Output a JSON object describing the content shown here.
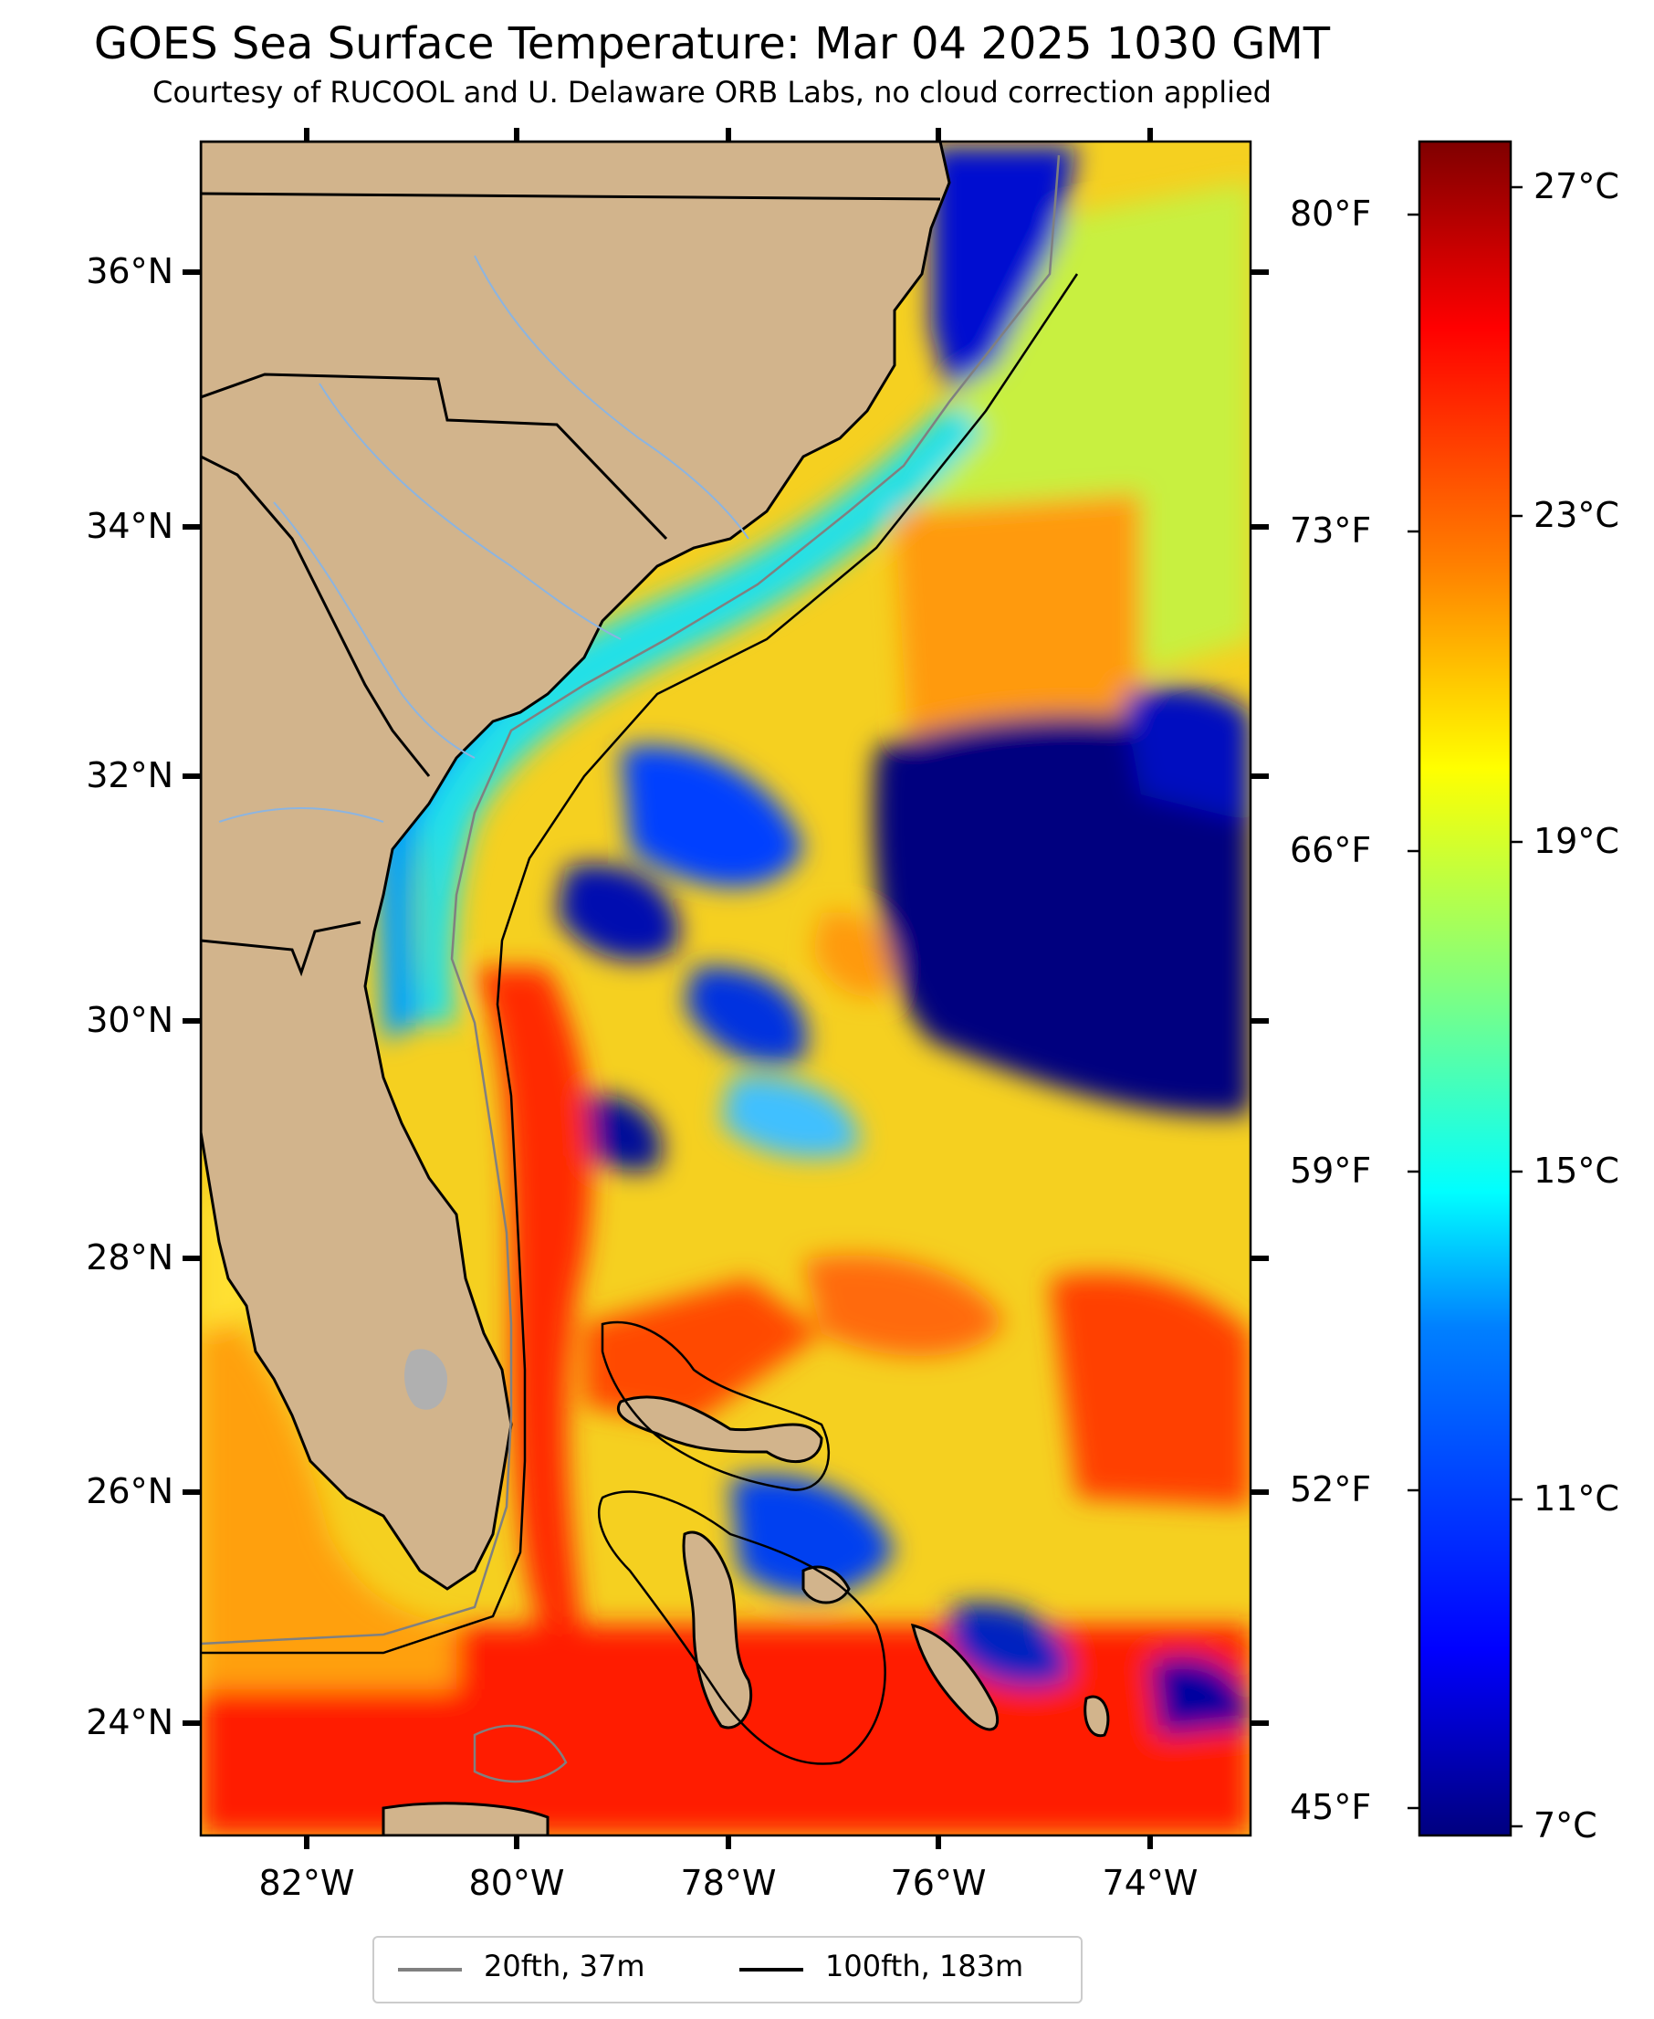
{
  "title": "GOES Sea Surface Temperature: Mar 04 2025 1030 GMT",
  "subtitle": "Courtesy of RUCOOL and U. Delaware ORB Labs, no cloud correction applied",
  "map": {
    "lat_labels": [
      "36°N",
      "34°N",
      "32°N",
      "30°N",
      "28°N",
      "26°N",
      "24°N"
    ],
    "lon_labels": [
      "82°W",
      "80°W",
      "78°W",
      "76°W",
      "74°W"
    ],
    "fahrenheit_labels": [
      "80°F",
      "73°F",
      "66°F",
      "59°F",
      "52°F",
      "45°F"
    ]
  },
  "colorbar": {
    "labels": [
      "27°C",
      "23°C",
      "19°C",
      "15°C",
      "11°C",
      "7°C"
    ],
    "colors": [
      "#00007f",
      "#0000ff",
      "#0080ff",
      "#00ffff",
      "#80ff80",
      "#ffff00",
      "#ff8000",
      "#ff0000",
      "#7f0000"
    ]
  },
  "legend": {
    "items": [
      {
        "label": "20fth, 37m",
        "color": "#808080"
      },
      {
        "label": "100fth, 183m",
        "color": "#000000"
      }
    ]
  },
  "colors": {
    "land": "#d2b48c",
    "cold_water": "#00007f",
    "warm_water": "#ff2000"
  }
}
